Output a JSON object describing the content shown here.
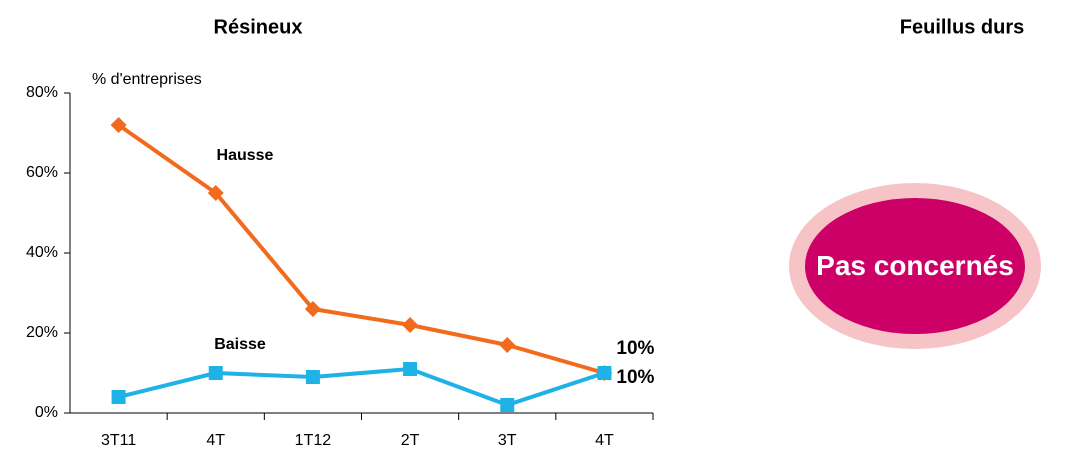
{
  "chart_data": {
    "type": "line",
    "title": "Résineux",
    "y_axis_label": "% d'entreprises",
    "categories": [
      "3T11",
      "4T",
      "1T12",
      "2T",
      "3T",
      "4T"
    ],
    "series": [
      {
        "name": "Hausse",
        "color": "#f26b1d",
        "marker": "diamond",
        "values": [
          72,
          55,
          26,
          22,
          17,
          10
        ],
        "value_labels": [
          null,
          null,
          null,
          null,
          null,
          "10%"
        ]
      },
      {
        "name": "Baisse",
        "color": "#1fb2e6",
        "marker": "square",
        "values": [
          4,
          10,
          9,
          11,
          2,
          10
        ],
        "value_labels": [
          null,
          null,
          null,
          null,
          null,
          "10%"
        ]
      }
    ],
    "ylim": [
      0,
      80
    ],
    "yticks": [
      {
        "value": 0,
        "label": "0%"
      },
      {
        "value": 20,
        "label": "20%"
      },
      {
        "value": 40,
        "label": "40%"
      },
      {
        "value": 60,
        "label": "60%"
      },
      {
        "value": 80,
        "label": "80%"
      }
    ],
    "grid": false
  },
  "panel2": {
    "title": "Feuillus durs",
    "badge": "Pas concernés"
  }
}
